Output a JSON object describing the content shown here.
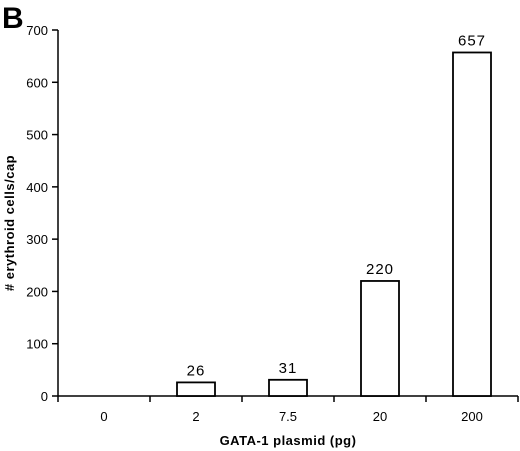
{
  "panel_label": "B",
  "chart_data": {
    "type": "bar",
    "categories": [
      "0",
      "2",
      "7.5",
      "20",
      "200"
    ],
    "values": [
      0,
      26,
      31,
      220,
      657
    ],
    "data_labels": [
      "",
      "26",
      "31",
      "220",
      "657"
    ],
    "xlabel": "GATA-1  plasmid  (pg)",
    "ylabel": "#  erythroid  cells/cap",
    "ylim": [
      0,
      700
    ],
    "yticks": [
      0,
      100,
      200,
      300,
      400,
      500,
      600,
      700
    ],
    "grid": false,
    "legend": "none"
  }
}
